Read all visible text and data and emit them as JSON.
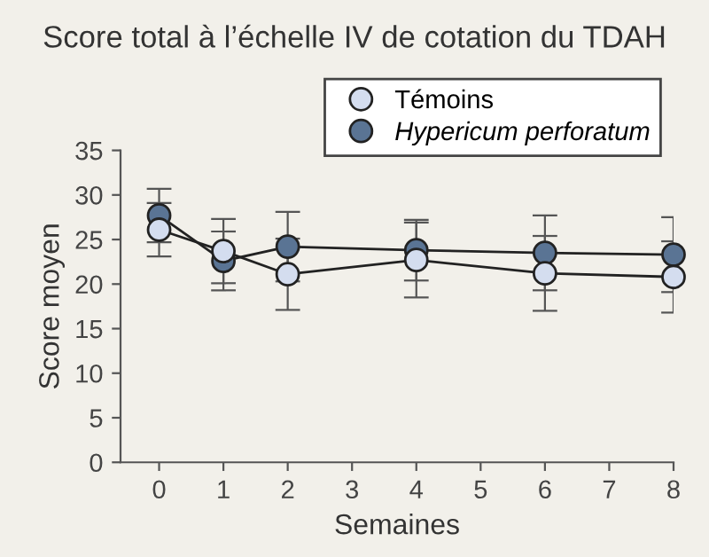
{
  "chart_data": {
    "type": "line",
    "title": "Score total à l’échelle IV de cotation du TDAH",
    "xlabel": "Semaines",
    "ylabel": "Score moyen",
    "x": [
      0,
      1,
      2,
      4,
      6,
      8
    ],
    "series": [
      {
        "name": "Témoins",
        "color": "#d4ddef",
        "values": [
          26.1,
          23.7,
          21.1,
          22.7,
          21.2,
          20.8
        ],
        "errors": [
          3.0,
          3.6,
          4.0,
          4.2,
          4.2,
          4.0
        ]
      },
      {
        "name": "Hypericum perforatum",
        "color": "#5a7494",
        "values": [
          27.7,
          22.6,
          24.2,
          23.8,
          23.5,
          23.3
        ],
        "errors": [
          3.0,
          3.3,
          3.9,
          3.4,
          4.2,
          4.2
        ]
      }
    ],
    "xlim": [
      -0.6,
      8
    ],
    "xticks": [
      0,
      1,
      2,
      3,
      4,
      5,
      6,
      7,
      8
    ],
    "ylim": [
      0,
      35
    ],
    "yticks": [
      0,
      5,
      10,
      15,
      20,
      25,
      30,
      35
    ],
    "marker": "circle",
    "line_style": "solid",
    "grid": false,
    "legend": "top right"
  }
}
